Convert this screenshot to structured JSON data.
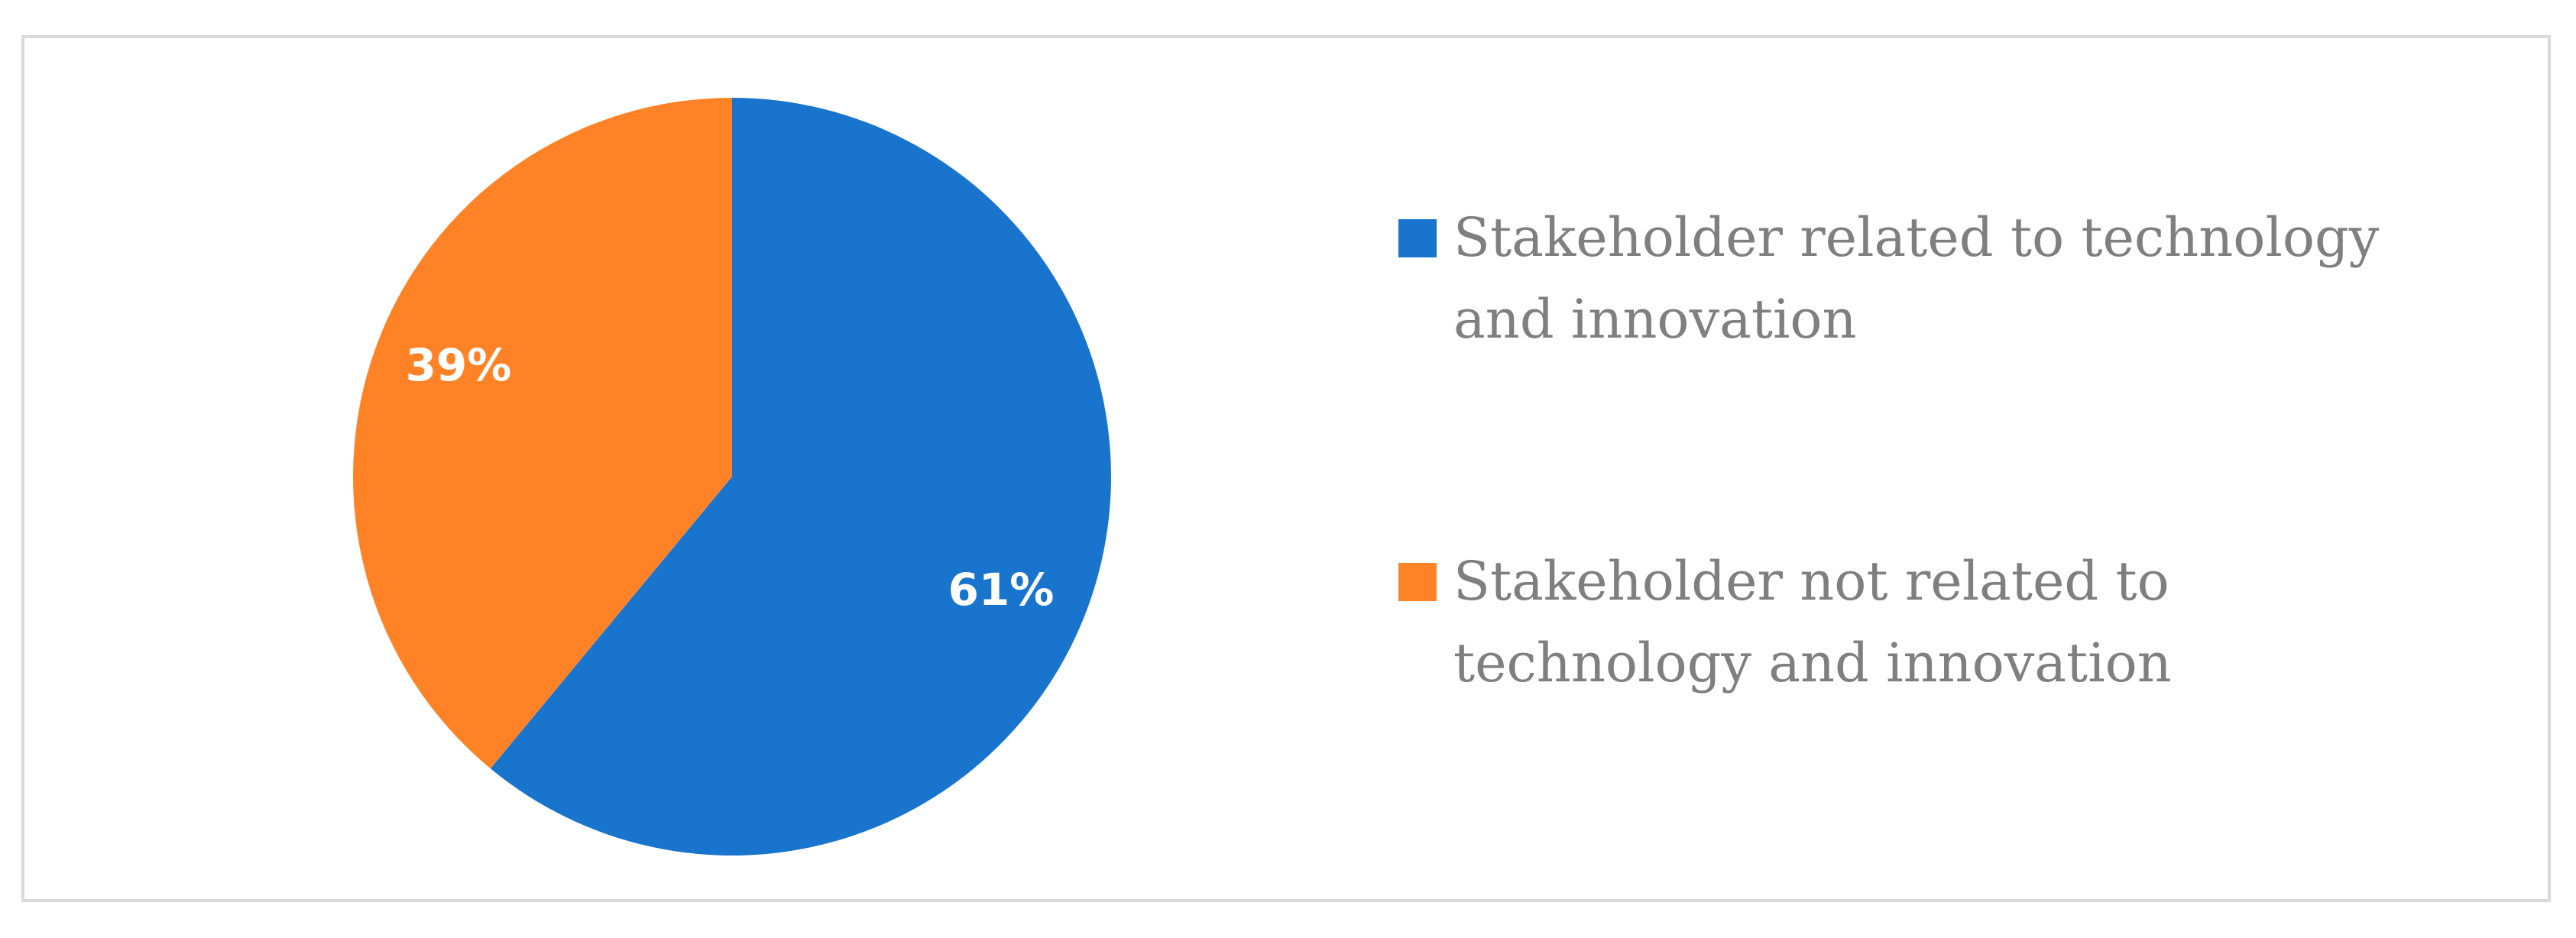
{
  "chart_data": {
    "type": "pie",
    "title": "",
    "slices": [
      {
        "name": "Stakeholder related to technology and innovation",
        "value": 61,
        "label": "61%",
        "color": "#1874CD"
      },
      {
        "name": "Stakeholder not related to technology and innovation",
        "value": 39,
        "label": "39%",
        "color": "#FF8226"
      }
    ],
    "start_angle_deg": 0,
    "direction": "clockwise",
    "legend_position": "right"
  }
}
